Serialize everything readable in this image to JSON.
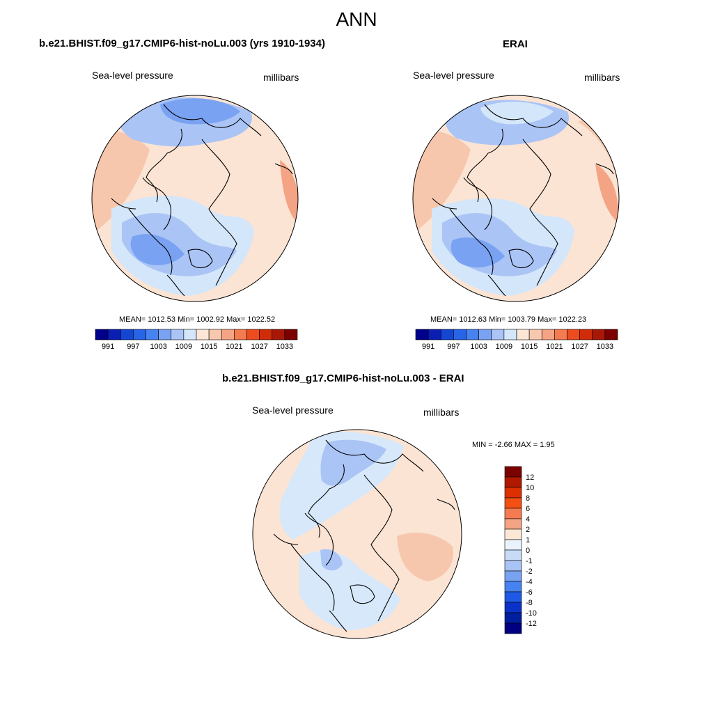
{
  "title": "ANN",
  "panels": [
    {
      "title": "b.e21.BHIST.f09_g17.CMIP6-hist-noLu.003 (yrs 1910-1934)",
      "field": "Sea-level pressure",
      "units": "millibars",
      "stats": "MEAN= 1012.53  Min= 1002.92  Max= 1022.52",
      "colorbar_labels": [
        "991",
        "997",
        "1003",
        "1009",
        "1015",
        "1021",
        "1027",
        "1033"
      ]
    },
    {
      "title": "ERAI",
      "field": "Sea-level pressure",
      "units": "millibars",
      "stats": "MEAN= 1012.63  Min= 1003.79  Max= 1022.23",
      "colorbar_labels": [
        "991",
        "997",
        "1003",
        "1009",
        "1015",
        "1021",
        "1027",
        "1033"
      ]
    }
  ],
  "diff": {
    "title": "b.e21.BHIST.f09_g17.CMIP6-hist-noLu.003 - ERAI",
    "field": "Sea-level pressure",
    "units": "millibars",
    "stats": "MIN =  -2.66 MAX =   1.95",
    "colorbar_labels": [
      "12",
      "10",
      "8",
      "6",
      "4",
      "2",
      "1",
      "0",
      "-1",
      "-2",
      "-4",
      "-6",
      "-8",
      "-10",
      "-12"
    ]
  },
  "colors": {
    "abs_scale": [
      "#00008c",
      "#0a1eb4",
      "#1446d2",
      "#2864e6",
      "#4682f0",
      "#7aa2f2",
      "#aac4f6",
      "#d4e6fa",
      "#fce6d6",
      "#f8c8ae",
      "#f4a484",
      "#f47a50",
      "#ee4c1e",
      "#d02c0a",
      "#a81806",
      "#7c0000"
    ],
    "diff_scale": [
      "#7c0000",
      "#b01800",
      "#dc3000",
      "#f45014",
      "#f47a50",
      "#f4a484",
      "#fce6d6",
      "#eaf2fc",
      "#c8dcf8",
      "#a8c4f4",
      "#7aa2f2",
      "#4682f0",
      "#1e5ae6",
      "#0a32c8",
      "#001e9e",
      "#000080"
    ],
    "neutral_low": "#d6e8fa",
    "neutral_high": "#fbe4d4"
  }
}
